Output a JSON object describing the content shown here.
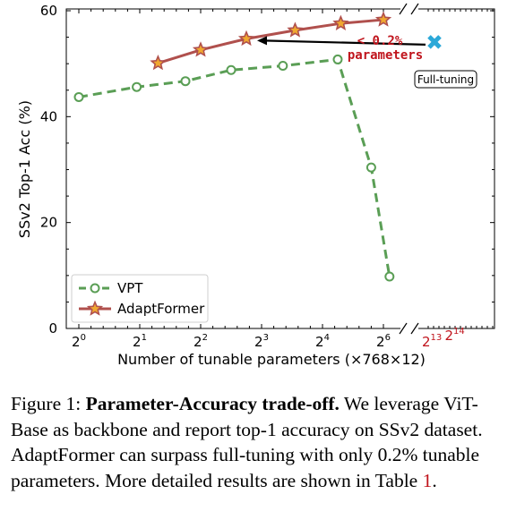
{
  "chart_data": {
    "type": "line",
    "xlabel": "Number of tunable parameters (×768×12)",
    "ylabel": "SSv2 Top-1 Acc (%)",
    "ylim": [
      0,
      60
    ],
    "y_ticks": [
      0,
      20,
      40,
      60
    ],
    "x_ticks": [
      {
        "base": "2",
        "exp": "0",
        "value": 0
      },
      {
        "base": "2",
        "exp": "1",
        "value": 1
      },
      {
        "base": "2",
        "exp": "2",
        "value": 2
      },
      {
        "base": "2",
        "exp": "3",
        "value": 3
      },
      {
        "base": "2",
        "exp": "4",
        "value": 4
      },
      {
        "base": "2",
        "exp": "6",
        "value": 5
      }
    ],
    "x_ticks_break": [
      {
        "base": "2",
        "exp": "13 ",
        "color": "#c0141c"
      },
      {
        "base": "2",
        "exp": "14",
        "color": "#c0141c"
      }
    ],
    "series": [
      {
        "name": "VPT",
        "color": "#5a9e55",
        "style": "dashed",
        "marker": "circle",
        "x": [
          0,
          0.95,
          1.75,
          2.5,
          3.35,
          4.25,
          4.8,
          5.1
        ],
        "y": [
          43.7,
          45.6,
          46.7,
          48.8,
          49.6,
          50.8,
          30.4,
          9.8
        ]
      },
      {
        "name": "AdaptFormer",
        "color": "#b0504d",
        "style": "solid",
        "marker": "star",
        "x": [
          1.3,
          2.0,
          2.75,
          3.55,
          4.3,
          5.0
        ],
        "y": [
          50.1,
          52.6,
          54.7,
          56.3,
          57.6,
          58.3
        ]
      }
    ],
    "fulltuning": {
      "label": "Full-tuning",
      "y": 54.1,
      "color": "#2ba8d8"
    },
    "annotation": {
      "line1": "< 0.2%",
      "line2": "parameters",
      "color": "#c0141c"
    },
    "legend": "lower-left",
    "grid": false
  },
  "caption": {
    "prefix": "Figure 1: ",
    "bold": "Parameter-Accuracy trade-off.",
    "body": " We leverage ViT-Base as backbone and report top-1 accuracy on SSv2 dataset. AdaptFormer can surpass full-tuning with only 0.2% tunable parameters. More detailed results are shown in Table ",
    "ref": "1",
    "end": "."
  }
}
